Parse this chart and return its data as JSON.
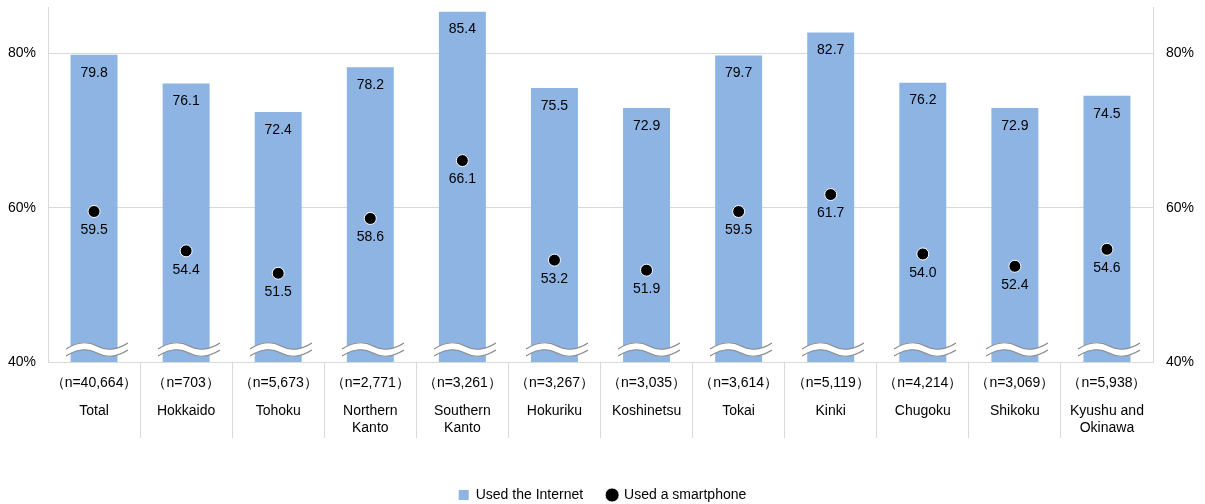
{
  "chart_data": {
    "type": "bar",
    "categories": [
      "（n=40,664）\nTotal",
      "（n=703）\nHokkaido",
      "（n=5,673）\nTohoku",
      "（n=2,771）\nNorthern Kanto",
      "（n=3,261）\nSouthern Kanto",
      "（n=3,267）\nHokuriku",
      "（n=3,035）\nKoshinetsu",
      "（n=3,614）\nTokai",
      "（n=5,119）\nKinki",
      "（n=4,214）\nChugoku",
      "（n=3,069）\nShikoku",
      "（n=5,938）\nKyushu and Okinawa"
    ],
    "series": [
      {
        "name": "Used the Internet",
        "color": "#8db4e2",
        "values": [
          79.8,
          76.1,
          72.4,
          78.2,
          85.4,
          75.5,
          72.9,
          79.7,
          82.7,
          76.2,
          72.9,
          74.5
        ],
        "value_labels": [
          "79.8",
          "76.1",
          "72.4",
          "78.2",
          "85.4",
          "75.5",
          "72.9",
          "79.7",
          "82.7",
          "76.2",
          "72.9",
          "74.5"
        ]
      },
      {
        "name": "Used a smartphone",
        "type": "scatter",
        "color": "#000000",
        "x": [
          "（n=40,664）\nTotal",
          "（n=703）\nHokkaido",
          "（n=5,673）\nTohoku",
          "（n=2,771）\nNorthern Kanto",
          "（n=3,261）\nSouthern Kanto",
          "（n=3,267）\nHokuriku",
          "（n=3,035）\nKoshinetsu",
          "（n=3,614）\nTokai",
          "（n=5,119）\nKinki",
          "（n=4,214）\nChugoku",
          "（n=3,069）\nShikoku",
          "（n=5,938）\nKyushu and Okinawa"
        ],
        "values": [
          59.5,
          54.4,
          51.5,
          58.6,
          66.1,
          53.2,
          51.9,
          59.5,
          61.7,
          54.0,
          52.4,
          54.6
        ],
        "value_labels": [
          "59.5",
          "54.4",
          "51.5",
          "58.6",
          "66.1",
          "53.2",
          "51.9",
          "59.5",
          "61.7",
          "54.0",
          "52.4",
          "54.6"
        ]
      }
    ],
    "ylim": [
      40,
      86
    ],
    "yticks": [
      {
        "value": 40,
        "label": "40%"
      },
      {
        "value": 60,
        "label": "60%"
      },
      {
        "value": 80,
        "label": "80%"
      }
    ],
    "y2lim": [
      40,
      86
    ],
    "y2ticks": [
      {
        "value": 40,
        "label": "40%"
      },
      {
        "value": 60,
        "label": "60%"
      },
      {
        "value": 80,
        "label": "80%"
      }
    ],
    "grid": "y",
    "legend": "bottom",
    "marker": "circle"
  }
}
